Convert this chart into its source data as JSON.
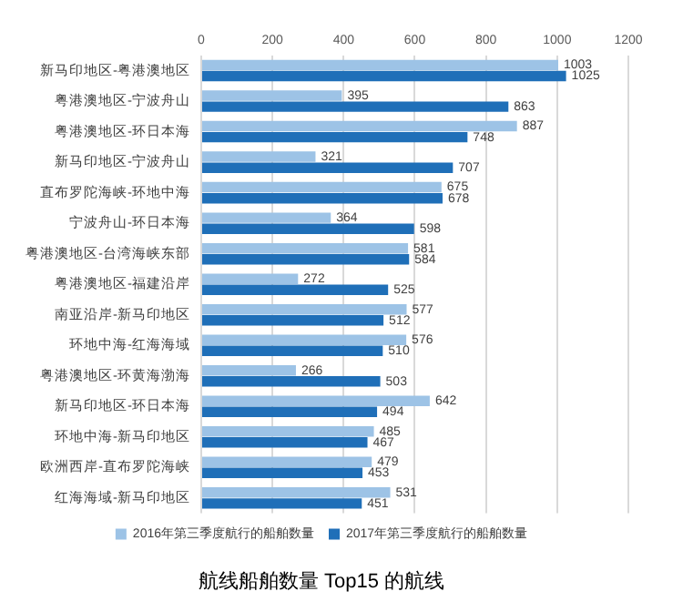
{
  "chart_data": {
    "type": "bar",
    "orientation": "horizontal",
    "title": "航线船舶数量 Top15 的航线",
    "categories": [
      "新马印地区-粤港澳地区",
      "粤港澳地区-宁波舟山",
      "粤港澳地区-环日本海",
      "新马印地区-宁波舟山",
      "直布罗陀海峡-环地中海",
      "宁波舟山-环日本海",
      "粤港澳地区-台湾海峡东部",
      "粤港澳地区-福建沿岸",
      "南亚沿岸-新马印地区",
      "环地中海-红海海域",
      "粤港澳地区-环黄海渤海",
      "新马印地区-环日本海",
      "环地中海-新马印地区",
      "欧洲西岸-直布罗陀海峡",
      "红海海域-新马印地区"
    ],
    "series": [
      {
        "name": "2016年第三季度航行的船舶数量",
        "color": "#9dc3e6",
        "values": [
          1003,
          395,
          887,
          321,
          675,
          364,
          581,
          272,
          577,
          576,
          266,
          642,
          485,
          479,
          531
        ]
      },
      {
        "name": "2017年第三季度航行的船舶数量",
        "color": "#1f6fb8",
        "values": [
          1025,
          863,
          748,
          707,
          678,
          598,
          584,
          525,
          512,
          510,
          503,
          494,
          467,
          453,
          451
        ]
      }
    ],
    "xlim": [
      0,
      1200
    ],
    "xticks": [
      0,
      200,
      400,
      600,
      800,
      1000,
      1200
    ],
    "grid": "x",
    "legend": "bottom",
    "data_labels": true
  }
}
